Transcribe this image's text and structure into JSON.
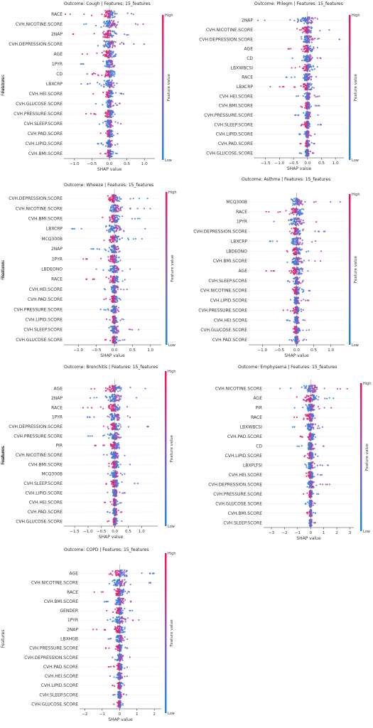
{
  "chart_data": [
    {
      "type": "scatter",
      "title": "Outcome: Cough | Features: 15_features",
      "xlabel": "SHAP value",
      "ylabel": "Features",
      "colorbar": {
        "label": "Feature value",
        "high": "High",
        "low": "Low"
      },
      "xlim": [
        -1.3,
        1.3
      ],
      "xticks": [
        -1.0,
        -0.5,
        0.0,
        0.5,
        1.0
      ],
      "xticklabels": [
        "−1.0",
        "−0.5",
        "0.0",
        "0.5",
        "1.0"
      ],
      "features": [
        "RACE",
        "CVH.NICOTINE.SCORE",
        "2NAP",
        "CVH.DEPRESSION.SCORE",
        "AGE",
        "1PYR",
        "CD",
        "LBXCRP",
        "CVH.HEI.SCORE",
        "CVH.GLUCOSE.SCORE",
        "CVH.PRESSURE.SCORE",
        "CVH.SLEEP.SCORE",
        "CVH.PAD.SCORE",
        "CVH.LIPID.SCORE",
        "CVH.BMI.SCORE"
      ],
      "ranges": [
        [
          -1.3,
          0.7
        ],
        [
          -0.8,
          1.3
        ],
        [
          -1.1,
          0.6
        ],
        [
          -0.4,
          1.2
        ],
        [
          -1.0,
          0.5
        ],
        [
          -0.9,
          0.5
        ],
        [
          -0.8,
          0.6
        ],
        [
          -0.9,
          0.6
        ],
        [
          -0.5,
          0.4
        ],
        [
          -0.4,
          0.5
        ],
        [
          -0.9,
          0.3
        ],
        [
          -0.3,
          0.5
        ],
        [
          -0.4,
          0.3
        ],
        [
          -0.4,
          0.3
        ],
        [
          -0.3,
          0.3
        ]
      ]
    },
    {
      "type": "scatter",
      "title": "Outcome: Phlegm | Features: 15_features",
      "xlabel": "SHAP value",
      "ylabel": "Features",
      "colorbar": {
        "label": "Feature value",
        "high": "High",
        "low": "Low"
      },
      "xlim": [
        -1.9,
        1.3
      ],
      "xticks": [
        -1.5,
        -1.0,
        -0.5,
        0.0,
        0.5,
        1.0
      ],
      "xticklabels": [
        "−1.5",
        "−1.0",
        "−0.5",
        "0.0",
        "0.5",
        "1.0"
      ],
      "features": [
        "2NAP",
        "CVH.NICOTINE.SCORE",
        "CVH.DEPRESSION.SCORE",
        "AGE",
        "CD",
        "LBXWBCSI",
        "RACE",
        "LBXCRP",
        "CVH.HEI.SCORE",
        "CVH.BMI.SCORE",
        "CVH.PRESSURE.SCORE",
        "CVH.SLEEP.SCORE",
        "CVH.LIPID.SCORE",
        "CVH.PAD.SCORE",
        "CVH.GLUCOSE.SCORE"
      ],
      "ranges": [
        [
          -1.8,
          0.6
        ],
        [
          -0.4,
          1.1
        ],
        [
          -0.3,
          1.2
        ],
        [
          -0.9,
          0.6
        ],
        [
          -0.8,
          0.5
        ],
        [
          -0.8,
          0.5
        ],
        [
          -0.8,
          0.4
        ],
        [
          -1.5,
          0.3
        ],
        [
          -0.4,
          0.5
        ],
        [
          -0.3,
          0.5
        ],
        [
          -0.5,
          0.4
        ],
        [
          -0.3,
          0.5
        ],
        [
          -0.3,
          0.3
        ],
        [
          -0.3,
          0.3
        ],
        [
          -0.3,
          0.3
        ]
      ]
    },
    {
      "type": "scatter",
      "title": "Outcome: Wheeze | Features: 15_features",
      "xlabel": "SHAP value",
      "ylabel": "Features",
      "colorbar": {
        "label": "Feature value",
        "high": "High",
        "low": "Low"
      },
      "xlim": [
        -1.4,
        1.3
      ],
      "xticks": [
        -1.0,
        -0.5,
        0.0,
        0.5,
        1.0
      ],
      "xticklabels": [
        "−1.0",
        "−0.5",
        "0.0",
        "0.5",
        "1.0"
      ],
      "features": [
        "CVH.DEPRESSION.SCORE",
        "CVH.NICOTINE.SCORE",
        "CVH.BMI.SCORE",
        "LBXCRP",
        "MCQ300B",
        "2NAP",
        "1PYR",
        "LBDEONO",
        "RACE",
        "CVH.HEI.SCORE",
        "CVH.PAD.SCORE",
        "CVH.PRESSURE.SCORE",
        "CVH.LIPID.SCORE",
        "CVH.SLEEP.SCORE",
        "CVH.GLUCOSE.SCORE"
      ],
      "ranges": [
        [
          -0.3,
          1.1
        ],
        [
          -0.3,
          1.0
        ],
        [
          -0.6,
          0.7
        ],
        [
          -1.2,
          0.9
        ],
        [
          -0.3,
          1.0
        ],
        [
          -0.8,
          0.4
        ],
        [
          -0.9,
          0.4
        ],
        [
          -0.7,
          0.5
        ],
        [
          -0.9,
          0.3
        ],
        [
          -0.4,
          0.4
        ],
        [
          -0.4,
          0.3
        ],
        [
          -0.4,
          0.3
        ],
        [
          -0.3,
          0.3
        ],
        [
          -0.3,
          0.8
        ],
        [
          -0.3,
          0.3
        ]
      ]
    },
    {
      "type": "scatter",
      "title": "Outcome: Asthma | Features: 15_features",
      "xlabel": "SHAP value",
      "ylabel": "Features",
      "colorbar": {
        "label": "Feature value",
        "high": "High",
        "low": "Low"
      },
      "xlim": [
        -1.4,
        1.4
      ],
      "xticks": [
        -1.0,
        -0.5,
        0.0,
        0.5,
        1.0
      ],
      "xticklabels": [
        "−1.0",
        "−0.5",
        "0.0",
        "0.5",
        "1.0"
      ],
      "features": [
        "MCQ300B",
        "RACE",
        "1PYR",
        "CVH.DEPRESSION.SCORE",
        "LBXCRP",
        "LBDEONO",
        "CVH.BMI.SCORE",
        "AGE",
        "CVH.SLEEP.SCORE",
        "CVH.NICOTINE.SCORE",
        "CVH.LIPID.SCORE",
        "CVH.PRESSURE.SCORE",
        "CVH.HEI.SCORE",
        "CVH.GLUCOSE.SCORE",
        "CVH.PAD.SCORE"
      ],
      "ranges": [
        [
          -0.3,
          1.3
        ],
        [
          -1.3,
          0.4
        ],
        [
          -0.9,
          0.6
        ],
        [
          -0.3,
          0.9
        ],
        [
          -0.8,
          0.7
        ],
        [
          -0.3,
          0.8
        ],
        [
          -0.3,
          0.8
        ],
        [
          -1.0,
          0.4
        ],
        [
          -0.3,
          0.5
        ],
        [
          -0.4,
          0.4
        ],
        [
          -0.3,
          0.4
        ],
        [
          -0.4,
          0.3
        ],
        [
          -0.3,
          0.3
        ],
        [
          -0.3,
          0.5
        ],
        [
          -0.3,
          0.3
        ]
      ]
    },
    {
      "type": "scatter",
      "title": "Outcome: Bronchitis | Features: 15_features",
      "xlabel": "SHAP value",
      "ylabel": "Features",
      "colorbar": {
        "label": "Feature value",
        "high": "High",
        "low": "Low"
      },
      "xlim": [
        -1.9,
        1.6
      ],
      "xticks": [
        -1.5,
        -1.0,
        -0.5,
        0.0,
        0.5,
        1.0
      ],
      "xticklabels": [
        "−1.5",
        "−1.0",
        "−0.5",
        "0.0",
        "0.5",
        "1.0"
      ],
      "features": [
        "AGE",
        "2NAP",
        "RACE",
        "1PYR",
        "CVH.DEPRESSION.SCORE",
        "CVH.PRESSURE.SCORE",
        "PIR",
        "CVH.NICOTINE.SCORE",
        "CVH.BMI.SCORE",
        "MCQ300B",
        "CVH.SLEEP.SCORE",
        "CVH.LIPID.SCORE",
        "CVH.HEI.SCORE",
        "CVH.PAD.SCORE",
        "CVH.GLUCOSE.SCORE"
      ],
      "ranges": [
        [
          -1.0,
          1.4
        ],
        [
          -1.3,
          1.1
        ],
        [
          -1.5,
          0.5
        ],
        [
          -1.2,
          0.6
        ],
        [
          -0.5,
          1.3
        ],
        [
          -1.0,
          0.4
        ],
        [
          -0.8,
          0.6
        ],
        [
          -0.5,
          0.6
        ],
        [
          -0.5,
          0.6
        ],
        [
          -0.5,
          0.4
        ],
        [
          -0.4,
          0.9
        ],
        [
          -0.4,
          0.4
        ],
        [
          -0.4,
          0.3
        ],
        [
          -0.3,
          0.3
        ],
        [
          -0.3,
          0.3
        ]
      ]
    },
    {
      "type": "scatter",
      "title": "Outcome: Emphysema | Features: 15_features",
      "xlabel": "SHAP value",
      "ylabel": "Features",
      "colorbar": {
        "label": "Feature value",
        "high": "High",
        "low": "Low"
      },
      "xlim": [
        -3.6,
        3.3
      ],
      "xticks": [
        -3,
        -2,
        -1,
        0,
        1,
        2,
        3
      ],
      "xticklabels": [
        "−3",
        "−2",
        "−1",
        "0",
        "1",
        "2",
        "3"
      ],
      "features": [
        "CVH.NICOTINE.SCORE",
        "AGE",
        "PIR",
        "RACE",
        "LBXWBCSI",
        "CVH.PAD.SCORE",
        "CD",
        "CVH.LIPID.SCORE",
        "LBXPLTSI",
        "CVH.HEI.SCORE",
        "CVH.DEPRESSION.SCORE",
        "CVH.PRESSURE.SCORE",
        "CVH.GLUCOSE.SCORE",
        "CVH.BMI.SCORE",
        "CVH.SLEEP.SCORE"
      ],
      "ranges": [
        [
          -2.5,
          2.8
        ],
        [
          -2.3,
          2.0
        ],
        [
          -1.5,
          1.6
        ],
        [
          -1.8,
          1.4
        ],
        [
          -1.8,
          1.1
        ],
        [
          -1.0,
          1.0
        ],
        [
          -1.2,
          1.0
        ],
        [
          -0.9,
          0.8
        ],
        [
          -0.5,
          1.6
        ],
        [
          -0.7,
          0.9
        ],
        [
          -0.5,
          1.6
        ],
        [
          -0.6,
          0.6
        ],
        [
          -0.5,
          0.5
        ],
        [
          -0.4,
          0.4
        ],
        [
          -0.4,
          0.4
        ]
      ]
    },
    {
      "type": "scatter",
      "title": "Outcome: COPD | Features: 15_features",
      "xlabel": "SHAP value",
      "ylabel": "Features",
      "colorbar": {
        "label": "Feature value",
        "high": "High",
        "low": "Low"
      },
      "xlim": [
        -2.3,
        2.4
      ],
      "xticks": [
        -2,
        -1,
        0,
        1,
        2
      ],
      "xticklabels": [
        "−2",
        "−1",
        "0",
        "1",
        "2"
      ],
      "features": [
        "AGE",
        "CVH.NICOTINE.SCORE",
        "RACE",
        "CVH.BMI.SCORE",
        "GENDER",
        "1PYR",
        "2NAP",
        "LBXHGB",
        "CVH.PRESSURE.SCORE",
        "CVH.DEPRESSION.SCORE",
        "CVH.PAD.SCORE",
        "CVH.HEI.SCORE",
        "CVH.LIPID.SCORE",
        "CVH.SLEEP.SCORE",
        "CVH.GLUCOSE.SCORE"
      ],
      "ranges": [
        [
          -1.8,
          2.0
        ],
        [
          -1.2,
          1.9
        ],
        [
          -1.5,
          0.9
        ],
        [
          -1.0,
          1.3
        ],
        [
          -1.0,
          0.8
        ],
        [
          -1.5,
          1.4
        ],
        [
          -2.1,
          0.6
        ],
        [
          -1.0,
          0.6
        ],
        [
          -0.9,
          0.6
        ],
        [
          -0.8,
          0.7
        ],
        [
          -0.7,
          0.6
        ],
        [
          -0.6,
          0.5
        ],
        [
          -0.5,
          0.4
        ],
        [
          -0.4,
          0.4
        ],
        [
          -0.4,
          0.3
        ]
      ]
    }
  ],
  "colors": {
    "low": "#1E88E5",
    "high": "#FF0D57",
    "axis": "#333333",
    "zero_line": "#999999"
  }
}
